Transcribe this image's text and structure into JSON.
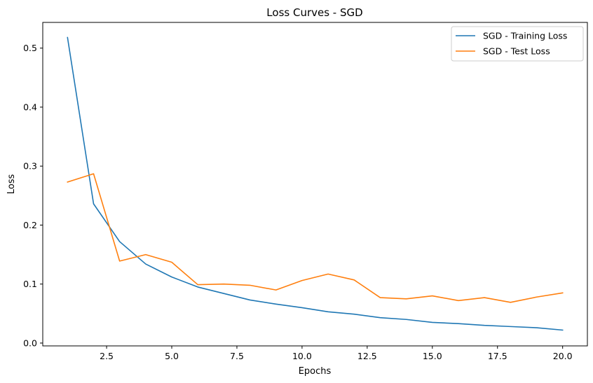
{
  "chart_data": {
    "type": "line",
    "title": "Loss Curves - SGD",
    "xlabel": "Epochs",
    "ylabel": "Loss",
    "xlim": [
      0.05,
      20.95
    ],
    "ylim": [
      -0.0048,
      0.5436
    ],
    "xticks": [
      2.5,
      5.0,
      7.5,
      10.0,
      12.5,
      15.0,
      17.5,
      20.0
    ],
    "xtick_labels": [
      "2.5",
      "5.0",
      "7.5",
      "10.0",
      "12.5",
      "15.0",
      "17.5",
      "20.0"
    ],
    "yticks": [
      0.0,
      0.1,
      0.2,
      0.3,
      0.4,
      0.5
    ],
    "ytick_labels": [
      "0.0",
      "0.1",
      "0.2",
      "0.3",
      "0.4",
      "0.5"
    ],
    "grid": false,
    "legend_position": "top-right",
    "x": [
      1,
      2,
      3,
      4,
      5,
      6,
      7,
      8,
      9,
      10,
      11,
      12,
      13,
      14,
      15,
      16,
      17,
      18,
      19,
      20
    ],
    "series": [
      {
        "name": "SGD - Training Loss",
        "color": "#1f77b4",
        "values": [
          0.518,
          0.236,
          0.172,
          0.134,
          0.112,
          0.095,
          0.084,
          0.073,
          0.066,
          0.06,
          0.053,
          0.049,
          0.043,
          0.04,
          0.035,
          0.033,
          0.03,
          0.028,
          0.026,
          0.022
        ]
      },
      {
        "name": "SGD - Test Loss",
        "color": "#ff7f0e",
        "values": [
          0.273,
          0.287,
          0.139,
          0.15,
          0.137,
          0.099,
          0.1,
          0.098,
          0.09,
          0.106,
          0.117,
          0.107,
          0.077,
          0.075,
          0.08,
          0.072,
          0.077,
          0.069,
          0.078,
          0.085
        ]
      }
    ]
  }
}
